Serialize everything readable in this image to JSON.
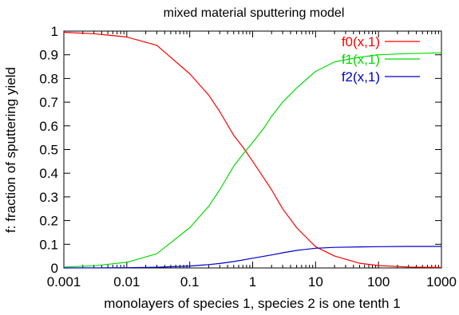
{
  "chart_data": {
    "type": "line",
    "title": "mixed material sputtering model",
    "xlabel": "monolayers of species 1, species 2 is one tenth 1",
    "ylabel": "f: fraction of sputtering yield",
    "xscale": "log",
    "xlim": [
      0.001,
      1000
    ],
    "ylim": [
      0,
      1
    ],
    "grid": false,
    "legend_position": "top-right",
    "x_ticks": [
      {
        "value": 0.001,
        "label": "0.001"
      },
      {
        "value": 0.01,
        "label": "0.01"
      },
      {
        "value": 0.1,
        "label": "0.1"
      },
      {
        "value": 1,
        "label": "1"
      },
      {
        "value": 10,
        "label": "10"
      },
      {
        "value": 100,
        "label": "100"
      },
      {
        "value": 1000,
        "label": "1000"
      }
    ],
    "y_ticks": [
      {
        "value": 0,
        "label": "0"
      },
      {
        "value": 0.1,
        "label": "0.1"
      },
      {
        "value": 0.2,
        "label": "0.2"
      },
      {
        "value": 0.3,
        "label": "0.3"
      },
      {
        "value": 0.4,
        "label": "0.4"
      },
      {
        "value": 0.5,
        "label": "0.5"
      },
      {
        "value": 0.6,
        "label": "0.6"
      },
      {
        "value": 0.7,
        "label": "0.7"
      },
      {
        "value": 0.8,
        "label": "0.8"
      },
      {
        "value": 0.9,
        "label": "0.9"
      },
      {
        "value": 1,
        "label": "1"
      }
    ],
    "series": [
      {
        "name": "f0(x,1)",
        "color": "#ff0000",
        "x": [
          0.001,
          0.003,
          0.01,
          0.03,
          0.1,
          0.2,
          0.3,
          0.5,
          0.7,
          1,
          1.5,
          2,
          3,
          5,
          10,
          20,
          50,
          100,
          300,
          1000
        ],
        "y": [
          0.995,
          0.989,
          0.975,
          0.94,
          0.82,
          0.73,
          0.66,
          0.56,
          0.51,
          0.45,
          0.38,
          0.33,
          0.25,
          0.17,
          0.09,
          0.05,
          0.02,
          0.01,
          0.004,
          0.002
        ]
      },
      {
        "name": "f1(x,1)",
        "color": "#00dd00",
        "x": [
          0.001,
          0.003,
          0.01,
          0.03,
          0.1,
          0.2,
          0.3,
          0.5,
          0.7,
          1,
          1.5,
          2,
          3,
          5,
          10,
          20,
          50,
          100,
          300,
          1000
        ],
        "y": [
          0.004,
          0.009,
          0.024,
          0.06,
          0.17,
          0.26,
          0.33,
          0.43,
          0.48,
          0.53,
          0.59,
          0.64,
          0.7,
          0.76,
          0.83,
          0.87,
          0.89,
          0.9,
          0.905,
          0.908
        ]
      },
      {
        "name": "f2(x,1)",
        "color": "#0000cc",
        "x": [
          0.001,
          0.01,
          0.03,
          0.1,
          0.2,
          0.3,
          0.5,
          1,
          2,
          3,
          5,
          10,
          20,
          50,
          100,
          300,
          1000
        ],
        "y": [
          0.0,
          0.001,
          0.003,
          0.008,
          0.014,
          0.019,
          0.027,
          0.041,
          0.055,
          0.064,
          0.074,
          0.083,
          0.087,
          0.089,
          0.09,
          0.091,
          0.091
        ]
      }
    ]
  }
}
